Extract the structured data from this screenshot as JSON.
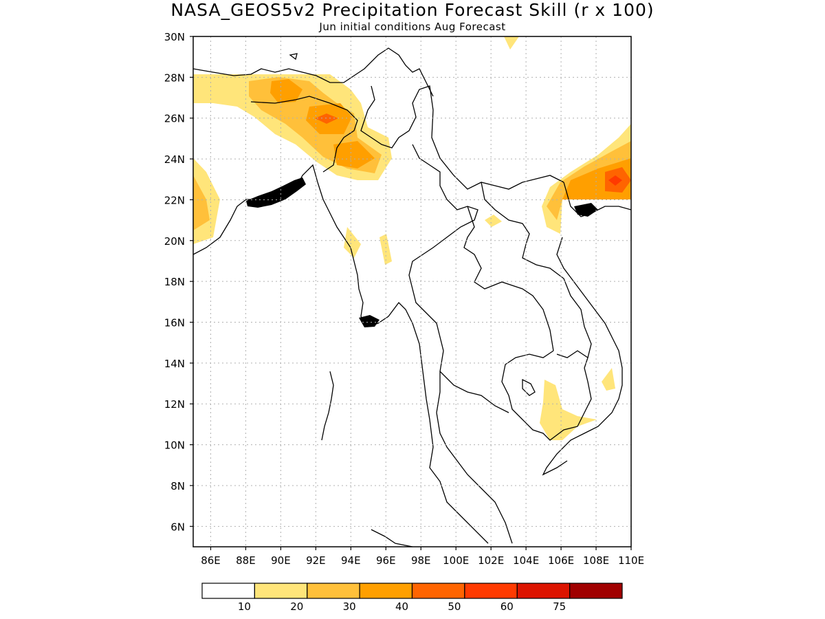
{
  "title": "NASA_GEOS5v2 Precipitation Forecast Skill (r x 100)",
  "subtitle": "Jun initial conditions  Aug Forecast",
  "map": {
    "lon_range": [
      85,
      110
    ],
    "lat_range": [
      5,
      30
    ],
    "lat_labels": [
      "30N",
      "28N",
      "26N",
      "24N",
      "22N",
      "20N",
      "18N",
      "16N",
      "14N",
      "12N",
      "10N",
      "8N",
      "6N"
    ],
    "lon_labels": [
      "86E",
      "88E",
      "90E",
      "92E",
      "94E",
      "96E",
      "98E",
      "100E",
      "102E",
      "104E",
      "106E",
      "108E",
      "110E"
    ],
    "grid": true
  },
  "colorbar": {
    "labels": [
      "10",
      "20",
      "30",
      "40",
      "50",
      "60",
      "75"
    ],
    "colors": [
      "#ffffff",
      "#ffe57a",
      "#ffc03a",
      "#ff9f00",
      "#ff6400",
      "#ff3a00",
      "#dc1400",
      "#a00000"
    ]
  }
}
